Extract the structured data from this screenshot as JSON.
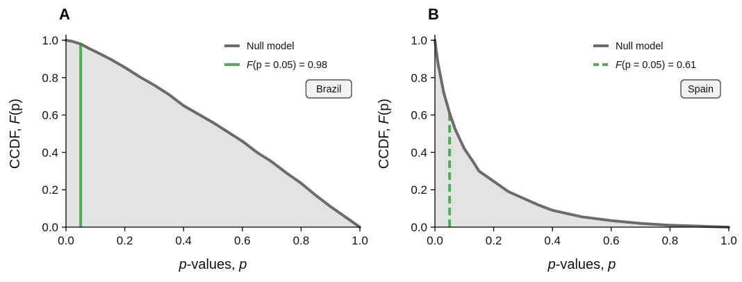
{
  "chart_data": [
    {
      "type": "area",
      "panel": "A",
      "region": "Brazil",
      "xlabel_italic": "p",
      "xlabel_rest": "-values, ",
      "xlabel_var": "p",
      "ylabel_main": "CCDF, ",
      "ylabel_func": "F",
      "ylabel_arg": "(p)",
      "xlim": [
        0,
        1
      ],
      "ylim": [
        0,
        1
      ],
      "xticks": [
        "0.0",
        "0.2",
        "0.4",
        "0.6",
        "0.8",
        "1.0"
      ],
      "yticks": [
        "0.0",
        "0.2",
        "0.4",
        "0.6",
        "0.8",
        "1.0"
      ],
      "grid": false,
      "legend_position": "top-right",
      "series": [
        {
          "name": "Null model",
          "color": "#6b6b6b",
          "x": [
            0.0,
            0.02,
            0.05,
            0.08,
            0.1,
            0.15,
            0.2,
            0.25,
            0.3,
            0.35,
            0.4,
            0.45,
            0.5,
            0.55,
            0.6,
            0.65,
            0.7,
            0.75,
            0.8,
            0.85,
            0.9,
            0.95,
            1.0
          ],
          "y": [
            1.0,
            0.995,
            0.98,
            0.955,
            0.94,
            0.9,
            0.855,
            0.805,
            0.76,
            0.71,
            0.65,
            0.605,
            0.56,
            0.51,
            0.46,
            0.4,
            0.35,
            0.29,
            0.235,
            0.17,
            0.11,
            0.055,
            0.0
          ]
        }
      ],
      "threshold": {
        "label_func": "F",
        "label_arg": "(p = 0.05) = 0.98",
        "x": 0.05,
        "y": 0.98,
        "color": "#4caf50",
        "style": "solid"
      }
    },
    {
      "type": "area",
      "panel": "B",
      "region": "Spain",
      "xlabel_italic": "p",
      "xlabel_rest": "-values, ",
      "xlabel_var": "p",
      "ylabel_main": "CCDF, ",
      "ylabel_func": "F",
      "ylabel_arg": "(p)",
      "xlim": [
        0,
        1
      ],
      "ylim": [
        0,
        1
      ],
      "xticks": [
        "0.0",
        "0.2",
        "0.4",
        "0.6",
        "0.8",
        "1.0"
      ],
      "yticks": [
        "0.0",
        "0.2",
        "0.4",
        "0.6",
        "0.8",
        "1.0"
      ],
      "grid": false,
      "legend_position": "top-right",
      "series": [
        {
          "name": "Null model",
          "color": "#6b6b6b",
          "x": [
            0.0,
            0.01,
            0.02,
            0.03,
            0.05,
            0.07,
            0.1,
            0.13,
            0.15,
            0.2,
            0.25,
            0.3,
            0.35,
            0.4,
            0.5,
            0.6,
            0.7,
            0.8,
            0.9,
            1.0
          ],
          "y": [
            1.0,
            0.88,
            0.8,
            0.72,
            0.61,
            0.52,
            0.42,
            0.35,
            0.3,
            0.245,
            0.19,
            0.155,
            0.12,
            0.09,
            0.055,
            0.035,
            0.02,
            0.01,
            0.005,
            0.0
          ]
        }
      ],
      "threshold": {
        "label_func": "F",
        "label_arg": "(p = 0.05) = 0.61",
        "x": 0.05,
        "y": 0.61,
        "color": "#4caf50",
        "style": "dashed"
      }
    }
  ]
}
